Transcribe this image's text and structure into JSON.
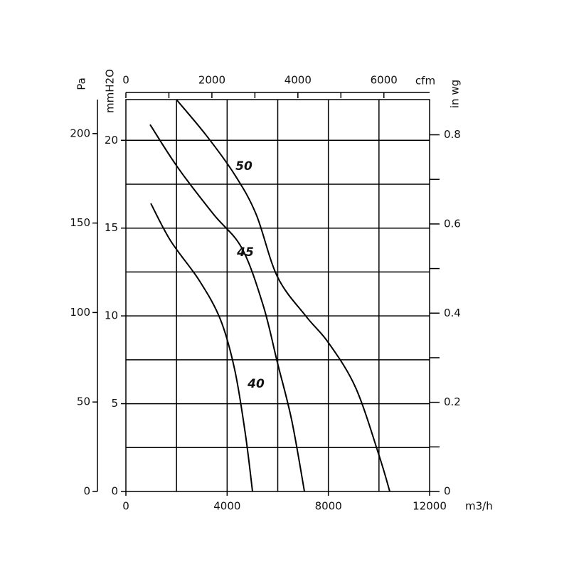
{
  "chart_data": {
    "type": "line",
    "x_label": "m3/h",
    "y_label": "Pa",
    "y2_label": "mmH2O",
    "y3_label": "in wg",
    "x2_label": "cfm",
    "xlim": [
      0,
      12000
    ],
    "xticks": [
      0,
      4000,
      8000,
      12000
    ],
    "xgrid": [
      2000,
      4000,
      6000,
      8000,
      10000
    ],
    "ylim": [
      0,
      219
    ],
    "yticks": [
      0,
      50,
      100,
      150,
      200
    ],
    "y2lim": [
      0,
      22.32
    ],
    "y2ticks": [
      0,
      5,
      10,
      15,
      20
    ],
    "y2grid": [
      2.5,
      5,
      7.5,
      10,
      12.5,
      15,
      17.5,
      20
    ],
    "y3lim": [
      0,
      0.879
    ],
    "y3ticks": [
      0,
      0.2,
      0.4,
      0.6,
      0.8
    ],
    "y3minor": [
      0.1,
      0.3,
      0.5,
      0.7
    ],
    "x2lim": [
      0,
      7063
    ],
    "x2ticks": [
      0,
      2000,
      4000,
      6000
    ],
    "x2minor": [
      1000,
      3000,
      5000
    ],
    "grid": true,
    "series": [
      {
        "name": "50",
        "color": "#000000",
        "x": [
          1996,
          3176,
          4300,
          5143,
          5987,
          7111,
          8010,
          9078,
          10006,
          10427
        ],
        "values": [
          219,
          199,
          177,
          155,
          120,
          98,
          83,
          58,
          20,
          0
        ]
      },
      {
        "name": "45",
        "color": "#000000",
        "x": [
          956,
          2052,
          3457,
          4581,
          5424,
          5987,
          6549,
          7055
        ],
        "values": [
          205,
          181,
          155,
          136,
          104,
          72,
          40,
          0
        ]
      },
      {
        "name": "40",
        "color": "#000000",
        "x": [
          984,
          1771,
          2895,
          3738,
          4300,
          4722,
          5003
        ],
        "values": [
          161,
          140,
          118,
          96,
          68,
          32,
          0
        ]
      }
    ]
  }
}
